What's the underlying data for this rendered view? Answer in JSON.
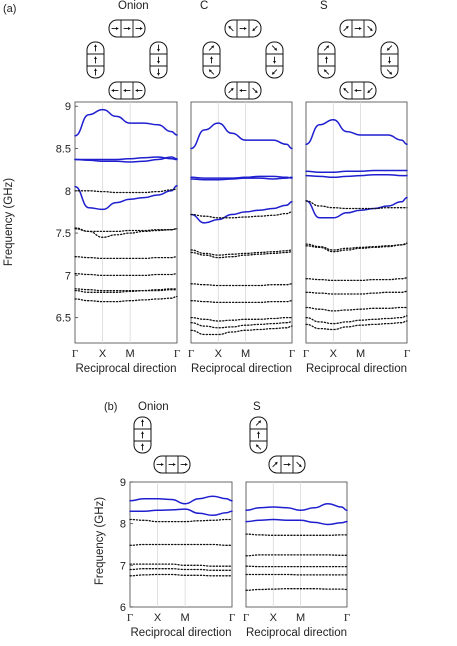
{
  "figure": {
    "panel_a_label": "(a)",
    "panel_b_label": "(b)"
  },
  "colors": {
    "solid_band": "#1f1fd0",
    "dotted_band": "#111111",
    "frame": "#444444",
    "grid": "#d9d9d9"
  },
  "icons": [
    "onion-state-icon",
    "c-state-icon",
    "s-state-icon",
    "arrow-icon"
  ],
  "chart_data": [
    {
      "type": "line",
      "panel": "a",
      "title": "Onion",
      "xlabel": "Reciprocal direction",
      "ylabel": "Frequency (GHz)",
      "x_ticks": [
        "Γ",
        "X",
        "M",
        "Γ"
      ],
      "x_tick_positions": [
        0,
        1,
        2,
        3.7
      ],
      "xlim": [
        0,
        3.7
      ],
      "ylim": [
        6.2,
        9.05
      ],
      "y_ticks": [
        6.5,
        7,
        7.5,
        8,
        8.5,
        9
      ],
      "y_tick_labels": [
        "6.5",
        "7",
        "7.5",
        "8",
        "8.5",
        "9"
      ],
      "grid": "vertical",
      "x": [
        0,
        0.5,
        1,
        1.5,
        2,
        2.5,
        3,
        3.5,
        3.7
      ],
      "series": [
        {
          "style": "solid",
          "values": [
            8.65,
            8.9,
            8.96,
            8.88,
            8.8,
            8.8,
            8.78,
            8.7,
            8.66
          ]
        },
        {
          "style": "solid",
          "values": [
            8.37,
            8.37,
            8.37,
            8.37,
            8.38,
            8.39,
            8.4,
            8.38,
            8.37
          ]
        },
        {
          "style": "solid",
          "values": [
            8.37,
            8.36,
            8.35,
            8.35,
            8.34,
            8.35,
            8.37,
            8.4,
            8.38
          ]
        },
        {
          "style": "solid",
          "values": [
            8.05,
            7.8,
            7.78,
            7.86,
            7.9,
            7.92,
            7.95,
            8.0,
            8.06
          ]
        },
        {
          "style": "dotted",
          "values": [
            8.0,
            8.0,
            7.99,
            7.98,
            7.98,
            7.98,
            7.99,
            8.01,
            8.02
          ]
        },
        {
          "style": "dotted",
          "values": [
            7.56,
            7.52,
            7.45,
            7.48,
            7.5,
            7.52,
            7.53,
            7.54,
            7.55
          ]
        },
        {
          "style": "dotted",
          "values": [
            7.55,
            7.52,
            7.52,
            7.52,
            7.53,
            7.53,
            7.54,
            7.54,
            7.55
          ]
        },
        {
          "style": "dotted",
          "values": [
            7.22,
            7.21,
            7.2,
            7.2,
            7.2,
            7.2,
            7.21,
            7.21,
            7.22
          ]
        },
        {
          "style": "dotted",
          "values": [
            7.02,
            7.01,
            7.0,
            7.0,
            7.0,
            7.0,
            7.01,
            7.01,
            7.02
          ]
        },
        {
          "style": "dotted",
          "values": [
            6.84,
            6.83,
            6.82,
            6.82,
            6.82,
            6.82,
            6.83,
            6.84,
            6.84
          ]
        },
        {
          "style": "dotted",
          "values": [
            6.82,
            6.8,
            6.8,
            6.8,
            6.81,
            6.82,
            6.82,
            6.83,
            6.83
          ]
        },
        {
          "style": "dotted",
          "values": [
            6.72,
            6.7,
            6.69,
            6.69,
            6.7,
            6.71,
            6.72,
            6.73,
            6.75
          ]
        }
      ]
    },
    {
      "type": "line",
      "panel": "a",
      "title": "C",
      "xlabel": "Reciprocal direction",
      "ylabel": "",
      "x_ticks": [
        "Γ",
        "X",
        "M",
        "Γ"
      ],
      "x_tick_positions": [
        0,
        1,
        2,
        3.7
      ],
      "xlim": [
        0,
        3.7
      ],
      "ylim": [
        6.2,
        9.05
      ],
      "grid": "vertical",
      "x": [
        0,
        0.5,
        1,
        1.5,
        2,
        2.5,
        3,
        3.5,
        3.7
      ],
      "series": [
        {
          "style": "solid",
          "values": [
            8.5,
            8.72,
            8.8,
            8.68,
            8.6,
            8.6,
            8.6,
            8.55,
            8.5
          ]
        },
        {
          "style": "solid",
          "values": [
            8.16,
            8.15,
            8.15,
            8.15,
            8.16,
            8.17,
            8.17,
            8.16,
            8.15
          ]
        },
        {
          "style": "solid",
          "values": [
            8.14,
            8.13,
            8.13,
            8.14,
            8.15,
            8.15,
            8.14,
            8.15,
            8.16
          ]
        },
        {
          "style": "solid",
          "values": [
            7.72,
            7.62,
            7.66,
            7.72,
            7.75,
            7.77,
            7.79,
            7.83,
            7.87
          ]
        },
        {
          "style": "dotted",
          "values": [
            7.72,
            7.7,
            7.68,
            7.68,
            7.69,
            7.7,
            7.71,
            7.73,
            7.75
          ]
        },
        {
          "style": "dotted",
          "values": [
            7.3,
            7.26,
            7.24,
            7.25,
            7.26,
            7.27,
            7.28,
            7.29,
            7.3
          ]
        },
        {
          "style": "dotted",
          "values": [
            7.27,
            7.24,
            7.21,
            7.22,
            7.24,
            7.25,
            7.26,
            7.27,
            7.28
          ]
        },
        {
          "style": "dotted",
          "values": [
            6.9,
            6.89,
            6.88,
            6.88,
            6.88,
            6.88,
            6.89,
            6.89,
            6.9
          ]
        },
        {
          "style": "dotted",
          "values": [
            6.7,
            6.69,
            6.68,
            6.68,
            6.68,
            6.68,
            6.69,
            6.69,
            6.7
          ]
        },
        {
          "style": "dotted",
          "values": [
            6.5,
            6.48,
            6.46,
            6.47,
            6.48,
            6.48,
            6.49,
            6.5,
            6.5
          ]
        },
        {
          "style": "dotted",
          "values": [
            6.44,
            6.4,
            6.38,
            6.39,
            6.41,
            6.42,
            6.43,
            6.44,
            6.45
          ]
        },
        {
          "style": "dotted",
          "values": [
            6.35,
            6.3,
            6.3,
            6.33,
            6.35,
            6.36,
            6.37,
            6.38,
            6.4
          ]
        }
      ]
    },
    {
      "type": "line",
      "panel": "a",
      "title": "S",
      "xlabel": "Reciprocal direction",
      "ylabel": "",
      "x_ticks": [
        "Γ",
        "X",
        "M",
        "Γ"
      ],
      "x_tick_positions": [
        0,
        1,
        2,
        3.7
      ],
      "xlim": [
        0,
        3.7
      ],
      "ylim": [
        6.2,
        9.05
      ],
      "grid": "vertical",
      "x": [
        0,
        0.5,
        1,
        1.5,
        2,
        2.5,
        3,
        3.5,
        3.7
      ],
      "series": [
        {
          "style": "solid",
          "values": [
            8.55,
            8.78,
            8.84,
            8.7,
            8.66,
            8.66,
            8.66,
            8.6,
            8.55
          ]
        },
        {
          "style": "solid",
          "values": [
            8.23,
            8.22,
            8.22,
            8.23,
            8.23,
            8.24,
            8.24,
            8.24,
            8.24
          ]
        },
        {
          "style": "solid",
          "values": [
            8.18,
            8.17,
            8.16,
            8.17,
            8.18,
            8.19,
            8.19,
            8.18,
            8.18
          ]
        },
        {
          "style": "solid",
          "values": [
            7.88,
            7.68,
            7.68,
            7.74,
            7.77,
            7.79,
            7.82,
            7.87,
            7.92
          ]
        },
        {
          "style": "dotted",
          "values": [
            7.88,
            7.82,
            7.8,
            7.79,
            7.79,
            7.79,
            7.8,
            7.8,
            7.8
          ]
        },
        {
          "style": "dotted",
          "values": [
            7.37,
            7.34,
            7.3,
            7.32,
            7.33,
            7.34,
            7.35,
            7.36,
            7.37
          ]
        },
        {
          "style": "dotted",
          "values": [
            7.35,
            7.33,
            7.28,
            7.3,
            7.32,
            7.33,
            7.34,
            7.36,
            7.38
          ]
        },
        {
          "style": "dotted",
          "values": [
            6.96,
            6.95,
            6.94,
            6.94,
            6.94,
            6.95,
            6.95,
            6.96,
            6.97
          ]
        },
        {
          "style": "dotted",
          "values": [
            6.8,
            6.79,
            6.78,
            6.78,
            6.78,
            6.79,
            6.8,
            6.8,
            6.81
          ]
        },
        {
          "style": "dotted",
          "values": [
            6.62,
            6.6,
            6.58,
            6.59,
            6.6,
            6.61,
            6.61,
            6.62,
            6.62
          ]
        },
        {
          "style": "dotted",
          "values": [
            6.5,
            6.45,
            6.43,
            6.45,
            6.47,
            6.48,
            6.49,
            6.5,
            6.52
          ]
        },
        {
          "style": "dotted",
          "values": [
            6.42,
            6.37,
            6.36,
            6.39,
            6.41,
            6.42,
            6.43,
            6.44,
            6.46
          ]
        }
      ]
    },
    {
      "type": "line",
      "panel": "b",
      "title": "Onion",
      "xlabel": "Reciprocal direction",
      "ylabel": "Frequency (GHz)",
      "x_ticks": [
        "Γ",
        "X",
        "M",
        "Γ"
      ],
      "x_tick_positions": [
        0,
        1,
        2,
        3.7
      ],
      "xlim": [
        0,
        3.7
      ],
      "ylim": [
        6,
        9
      ],
      "y_ticks": [
        6,
        7,
        8,
        9
      ],
      "y_tick_labels": [
        "6",
        "7",
        "8",
        "9"
      ],
      "grid": "vertical",
      "x": [
        0,
        0.5,
        1,
        1.5,
        2,
        2.5,
        3,
        3.5,
        3.7
      ],
      "series": [
        {
          "style": "solid",
          "values": [
            8.55,
            8.6,
            8.6,
            8.58,
            8.48,
            8.6,
            8.66,
            8.6,
            8.55
          ]
        },
        {
          "style": "solid",
          "values": [
            8.3,
            8.3,
            8.32,
            8.33,
            8.35,
            8.25,
            8.2,
            8.26,
            8.3
          ]
        },
        {
          "style": "dotted",
          "values": [
            8.1,
            8.08,
            8.05,
            8.05,
            8.05,
            8.07,
            8.08,
            8.1,
            8.1
          ]
        },
        {
          "style": "dotted",
          "values": [
            7.48,
            7.5,
            7.5,
            7.5,
            7.5,
            7.5,
            7.5,
            7.48,
            7.48
          ]
        },
        {
          "style": "dotted",
          "values": [
            7.03,
            7.03,
            7.03,
            7.03,
            7.0,
            7.0,
            6.98,
            6.98,
            6.98
          ]
        },
        {
          "style": "dotted",
          "values": [
            6.9,
            6.92,
            6.92,
            6.92,
            6.9,
            6.9,
            6.88,
            6.88,
            6.88
          ]
        },
        {
          "style": "dotted",
          "values": [
            6.75,
            6.77,
            6.78,
            6.78,
            6.76,
            6.76,
            6.75,
            6.75,
            6.75
          ]
        }
      ]
    },
    {
      "type": "line",
      "panel": "b",
      "title": "S",
      "xlabel": "Reciprocal direction",
      "ylabel": "",
      "x_ticks": [
        "Γ",
        "X",
        "M",
        "Γ"
      ],
      "x_tick_positions": [
        0,
        1,
        2,
        3.7
      ],
      "xlim": [
        0,
        3.7
      ],
      "ylim": [
        6,
        9
      ],
      "grid": "vertical",
      "x": [
        0,
        0.5,
        1,
        1.5,
        2,
        2.5,
        3,
        3.5,
        3.7
      ],
      "series": [
        {
          "style": "solid",
          "values": [
            8.32,
            8.38,
            8.4,
            8.38,
            8.32,
            8.38,
            8.48,
            8.4,
            8.32
          ]
        },
        {
          "style": "solid",
          "values": [
            8.05,
            8.08,
            8.1,
            8.08,
            8.08,
            8.03,
            7.98,
            8.02,
            8.05
          ]
        },
        {
          "style": "dotted",
          "values": [
            7.75,
            7.73,
            7.72,
            7.72,
            7.72,
            7.72,
            7.72,
            7.73,
            7.73
          ]
        },
        {
          "style": "dotted",
          "values": [
            7.23,
            7.25,
            7.25,
            7.25,
            7.25,
            7.25,
            7.25,
            7.24,
            7.24
          ]
        },
        {
          "style": "dotted",
          "values": [
            6.98,
            6.97,
            6.97,
            6.97,
            6.97,
            6.97,
            6.97,
            6.97,
            6.97
          ]
        },
        {
          "style": "dotted",
          "values": [
            6.78,
            6.78,
            6.78,
            6.78,
            6.77,
            6.77,
            6.77,
            6.77,
            6.77
          ]
        },
        {
          "style": "dotted",
          "values": [
            6.4,
            6.42,
            6.43,
            6.44,
            6.44,
            6.44,
            6.43,
            6.43,
            6.42
          ]
        }
      ]
    }
  ]
}
